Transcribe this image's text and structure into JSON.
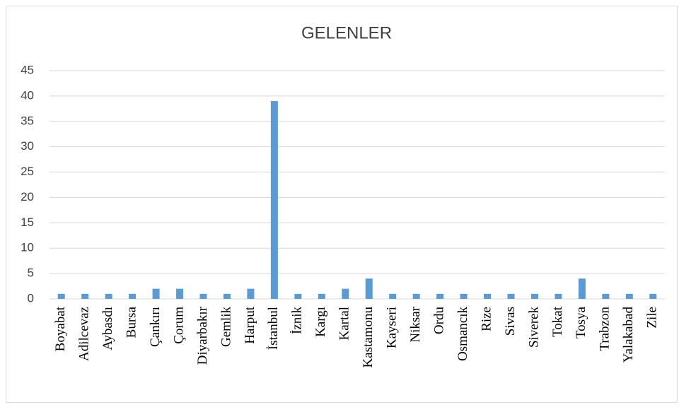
{
  "chart_data": {
    "type": "bar",
    "title": "GELENLER",
    "categories": [
      "Boyabat",
      "Adilcevaz",
      "Aybasdı",
      "Bursa",
      "Çankırı",
      "Çorum",
      "Diyarbakır",
      "Gemlik",
      "Harput",
      "İstanbul",
      "İznik",
      "Kargı",
      "Kartal",
      "Kastamonu",
      "Kayseri",
      "Niksar",
      "Ordu",
      "Osmancık",
      "Rize",
      "Sivas",
      "Siverek",
      "Tokat",
      "Tosya",
      "Trabzon",
      "Yalakabad",
      "Zile"
    ],
    "values": [
      1,
      1,
      1,
      1,
      2,
      2,
      1,
      1,
      2,
      39,
      1,
      1,
      2,
      4,
      1,
      1,
      1,
      1,
      1,
      1,
      1,
      1,
      4,
      1,
      1,
      1
    ],
    "color": "#5b9bd5",
    "ylim": [
      0,
      45
    ],
    "yticks": [
      0,
      5,
      10,
      15,
      20,
      25,
      30,
      35,
      40,
      45
    ],
    "grid": true
  }
}
